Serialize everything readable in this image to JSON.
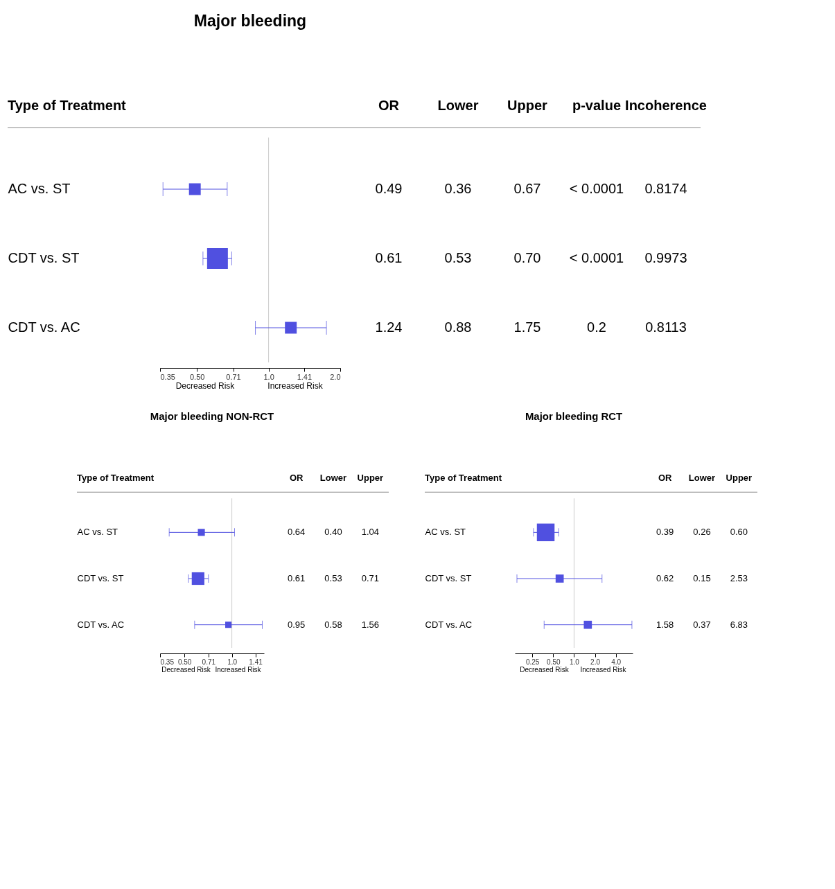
{
  "chart_data": [
    {
      "type": "bubble",
      "orientation": "horizontal",
      "title": "Major bleeding",
      "ylabel": "Type of Treatment",
      "marker": "square",
      "color": "#5050e0",
      "log": "x",
      "categories": [
        "AC vs. ST",
        "CDT vs. ST",
        "CDT vs. AC"
      ],
      "values": [
        0.49,
        0.61,
        1.24
      ],
      "errors": [
        [
          0.36,
          0.67
        ],
        [
          0.53,
          0.7
        ],
        [
          0.88,
          1.75
        ]
      ],
      "sizes": [
        0.32,
        1,
        0.32
      ],
      "xlim": [
        0.35,
        2.0
      ],
      "xticks": [
        0.35,
        {
          "value": 0.5,
          "label": "0.50"
        },
        0.71,
        {
          "value": 1,
          "label": "1.0"
        },
        1.41,
        {
          "value": 2,
          "label": "2.0"
        }
      ],
      "ref_lines": [
        {
          "axis": "x",
          "value": 1,
          "color": "#cccccc"
        }
      ],
      "annotations": [
        "OR",
        "Lower",
        "Upper",
        "p-value",
        "Incoherence",
        "0.49",
        "0.36",
        "0.67",
        "< 0.0001",
        "0.8174",
        "0.61",
        "0.53",
        "0.70",
        "< 0.0001",
        "0.9973",
        "1.24",
        "0.88",
        "1.75",
        "0.2",
        "0.8113",
        "Decreased Risk",
        "Increased Risk"
      ]
    },
    {
      "type": "bubble",
      "orientation": "horizontal",
      "title": "Major bleeding NON-RCT",
      "ylabel": "Type of Treatment",
      "marker": "square",
      "color": "#5050e0",
      "log": "x",
      "categories": [
        "AC vs. ST",
        "CDT vs. ST",
        "CDT vs. AC"
      ],
      "values": [
        0.64,
        0.61,
        0.95
      ],
      "errors": [
        [
          0.4,
          1.04
        ],
        [
          0.53,
          0.71
        ],
        [
          0.58,
          1.56
        ]
      ],
      "sizes": [
        0.31,
        1,
        0.25
      ],
      "xlim": [
        0.35,
        1.6
      ],
      "xticks": [
        0.35,
        {
          "value": 0.5,
          "label": "0.50"
        },
        0.71,
        {
          "value": 1,
          "label": "1.0"
        },
        1.41
      ],
      "ref_lines": [
        {
          "axis": "x",
          "value": 1,
          "color": "#cccccc"
        }
      ],
      "annotations": [
        "OR",
        "Lower",
        "Upper",
        "0.64",
        "0.40",
        "1.04",
        "0.61",
        "0.53",
        "0.71",
        "0.95",
        "0.58",
        "1.56",
        "Decreased Risk",
        "Increased Risk"
      ]
    },
    {
      "type": "bubble",
      "orientation": "horizontal",
      "title": "Major bleeding RCT",
      "ylabel": "Type of Treatment",
      "marker": "square",
      "color": "#5050e0",
      "log": "x",
      "categories": [
        "AC vs. ST",
        "CDT vs. ST",
        "CDT vs. AC"
      ],
      "values": [
        0.39,
        0.62,
        1.58
      ],
      "errors": [
        [
          0.26,
          0.6
        ],
        [
          0.15,
          2.53
        ],
        [
          0.37,
          6.83
        ]
      ],
      "sizes": [
        1,
        0.21,
        0.21
      ],
      "xlim": [
        0.14,
        7.0
      ],
      "xticks": [
        0.25,
        {
          "value": 0.5,
          "label": "0.50"
        },
        {
          "value": 1,
          "label": "1.0"
        },
        {
          "value": 2,
          "label": "2.0"
        },
        {
          "value": 4,
          "label": "4.0"
        }
      ],
      "ref_lines": [
        {
          "axis": "x",
          "value": 1,
          "color": "#cccccc"
        }
      ],
      "annotations": [
        "OR",
        "Lower",
        "Upper",
        "0.39",
        "0.26",
        "0.60",
        "0.62",
        "0.15",
        "2.53",
        "1.58",
        "0.37",
        "6.83",
        "Decreased Risk",
        "Increased Risk"
      ]
    }
  ]
}
